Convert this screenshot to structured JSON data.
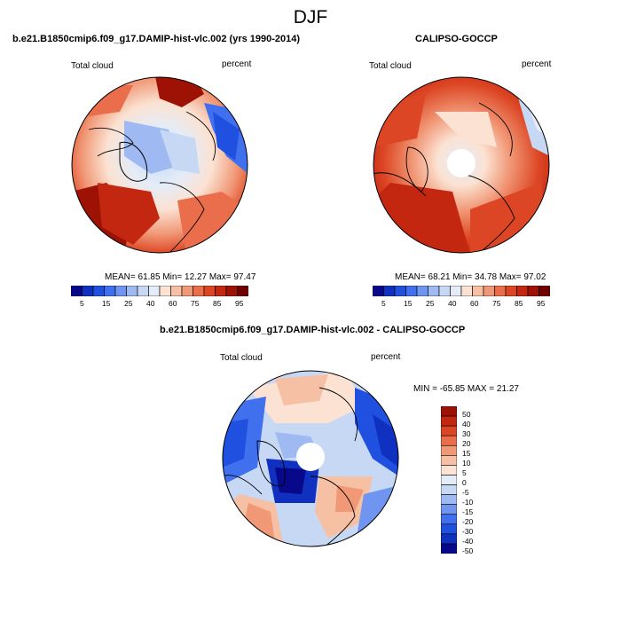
{
  "season": "DJF",
  "colors": {
    "abs": [
      "#08088a",
      "#1030c0",
      "#2050e0",
      "#4070ee",
      "#6f95f0",
      "#9fbaf2",
      "#c6d8f4",
      "#e4ecf8",
      "#fbe2d2",
      "#f6c0a4",
      "#f19876",
      "#ea6e4c",
      "#dc4624",
      "#c42710",
      "#9e1206",
      "#700000"
    ],
    "diff": [
      "#08088a",
      "#1030c0",
      "#2050e0",
      "#4070ee",
      "#6f95f0",
      "#9fbaf2",
      "#c6d8f4",
      "#e4ecf8",
      "#fbe2d2",
      "#f6c0a4",
      "#f19876",
      "#ea6e4c",
      "#dc4624",
      "#c42710",
      "#9e1206"
    ]
  },
  "panels": [
    {
      "title": "b.e21.B1850cmip6.f09_g17.DAMIP-hist-vlc.002 (yrs 1990-2014)",
      "variable": "Total cloud",
      "units": "percent",
      "stats": "MEAN=  61.85  Min=  12.27  Max=  97.47"
    },
    {
      "title": "CALIPSO-GOCCP",
      "variable": "Total cloud",
      "units": "percent",
      "stats": "MEAN=  68.21  Min=  34.78  Max=  97.02"
    },
    {
      "title": "b.e21.B1850cmip6.f09_g17.DAMIP-hist-vlc.002 - CALIPSO-GOCCP",
      "variable": "Total cloud",
      "units": "percent",
      "stats": "MIN = -65.85  MAX =  21.27"
    }
  ],
  "abs_ticks": [
    "5",
    "15",
    "25",
    "40",
    "60",
    "75",
    "85",
    "95"
  ],
  "diff_ticks": [
    "50",
    "40",
    "30",
    "20",
    "15",
    "10",
    "5",
    "0",
    "-5",
    "-10",
    "-15",
    "-20",
    "-30",
    "-40",
    "-50"
  ]
}
